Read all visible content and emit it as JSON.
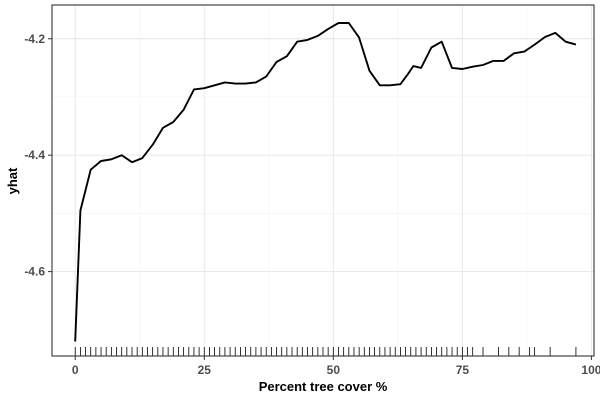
{
  "chart_data": {
    "type": "line",
    "title": "",
    "xlabel": "Percent tree cover %",
    "ylabel": "yhat",
    "xlim": [
      -4.5,
      100.5
    ],
    "ylim": [
      -4.745,
      -4.142
    ],
    "x_ticks": [
      0,
      25,
      50,
      75,
      100
    ],
    "x_tick_labels": [
      "0",
      "25",
      "50",
      "75",
      "100"
    ],
    "y_ticks": [
      -4.6,
      -4.4,
      -4.2
    ],
    "y_tick_labels": [
      "-4.6",
      "-4.4",
      "-4.2"
    ],
    "grid": true,
    "series": [
      {
        "color": "#000000",
        "x": [
          0,
          1,
          3,
          5,
          7,
          9,
          11,
          13,
          15,
          17,
          19,
          21,
          23,
          25,
          27,
          29,
          31,
          33,
          35,
          37,
          39,
          41,
          43,
          45,
          47,
          49,
          51,
          53,
          55,
          57,
          59,
          61,
          63,
          64.5,
          65.5,
          67,
          69,
          71,
          73,
          75,
          77,
          79,
          81,
          83,
          85,
          87,
          89,
          91,
          93,
          95,
          97
        ],
        "y": [
          -4.72,
          -4.495,
          -4.425,
          -4.41,
          -4.407,
          -4.4,
          -4.412,
          -4.405,
          -4.382,
          -4.353,
          -4.343,
          -4.322,
          -4.287,
          -4.285,
          -4.28,
          -4.275,
          -4.277,
          -4.277,
          -4.275,
          -4.265,
          -4.24,
          -4.23,
          -4.205,
          -4.202,
          -4.195,
          -4.183,
          -4.173,
          -4.173,
          -4.198,
          -4.255,
          -4.28,
          -4.28,
          -4.278,
          -4.26,
          -4.247,
          -4.25,
          -4.215,
          -4.205,
          -4.25,
          -4.252,
          -4.248,
          -4.245,
          -4.238,
          -4.238,
          -4.225,
          -4.222,
          -4.21,
          -4.197,
          -4.19,
          -4.205,
          -4.21
        ]
      }
    ],
    "rug_x": [
      0,
      1,
      2,
      3,
      4,
      5,
      6,
      7,
      8,
      9,
      10,
      11,
      12,
      13,
      14,
      15,
      16,
      17,
      18,
      19,
      20,
      21,
      22,
      23,
      24,
      25,
      26,
      27,
      28,
      29,
      30,
      31,
      32,
      33,
      34,
      35,
      36,
      37,
      38,
      39,
      40,
      41,
      42,
      43,
      44,
      45,
      46,
      47,
      48,
      49,
      50,
      51,
      52,
      53,
      54,
      55,
      56,
      57,
      58,
      59,
      60,
      61,
      62,
      63,
      64,
      65,
      66,
      67,
      68,
      69,
      70,
      71,
      72,
      73,
      74,
      75,
      76,
      77,
      79,
      82,
      84,
      86,
      88,
      89,
      92,
      97
    ]
  }
}
